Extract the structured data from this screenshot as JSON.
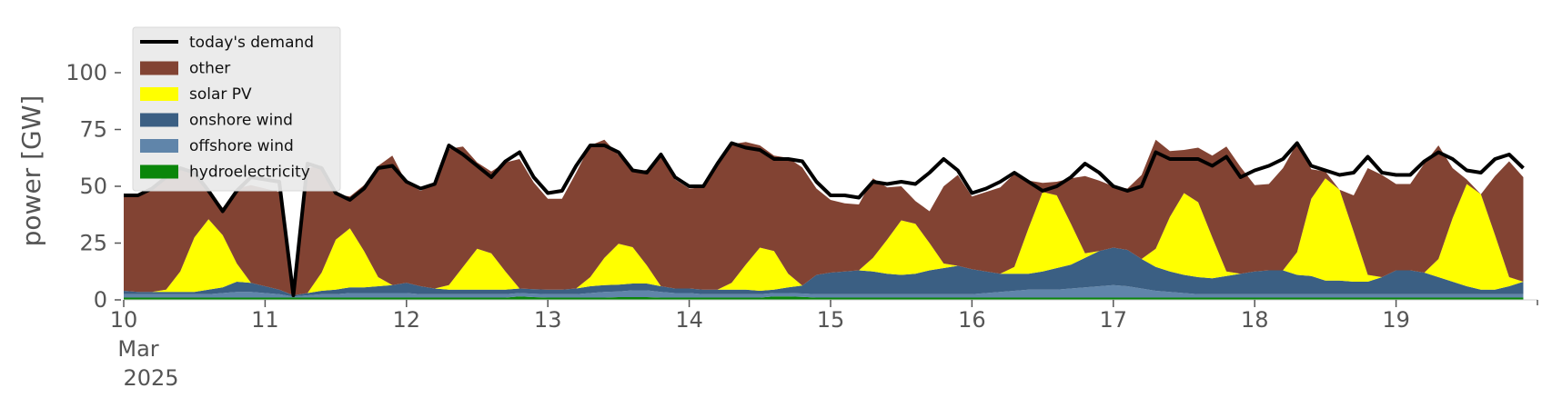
{
  "chart_data": {
    "type": "area",
    "title": "",
    "xlabel": "",
    "ylabel": "power [GW]",
    "ylim": [
      0,
      120
    ],
    "xlim": [
      10,
      20
    ],
    "yticks": [
      0,
      25,
      50,
      75,
      100
    ],
    "xticks": [
      {
        "value": 10,
        "label": "10",
        "sub1": "Mar",
        "sub2": "2025"
      },
      {
        "value": 11,
        "label": "11"
      },
      {
        "value": 12,
        "label": "12"
      },
      {
        "value": 13,
        "label": "13"
      },
      {
        "value": 14,
        "label": "14"
      },
      {
        "value": 15,
        "label": "15"
      },
      {
        "value": 16,
        "label": "16"
      },
      {
        "value": 17,
        "label": "17"
      },
      {
        "value": 18,
        "label": "18"
      },
      {
        "value": 19,
        "label": "19"
      }
    ],
    "grid": false,
    "legend_position": "top-left",
    "x": [
      10.0,
      10.1,
      10.2,
      10.3,
      10.4,
      10.5,
      10.6,
      10.7,
      10.8,
      10.9,
      11.0,
      11.1,
      11.2,
      11.3,
      11.4,
      11.5,
      11.6,
      11.7,
      11.8,
      11.9,
      12.0,
      12.1,
      12.2,
      12.3,
      12.4,
      12.5,
      12.6,
      12.7,
      12.8,
      12.9,
      13.0,
      13.1,
      13.2,
      13.3,
      13.4,
      13.5,
      13.6,
      13.7,
      13.8,
      13.9,
      14.0,
      14.1,
      14.2,
      14.3,
      14.4,
      14.5,
      14.6,
      14.7,
      14.8,
      14.9,
      15.0,
      15.1,
      15.2,
      15.3,
      15.4,
      15.5,
      15.6,
      15.7,
      15.8,
      15.9,
      16.0,
      16.1,
      16.2,
      16.3,
      16.4,
      16.5,
      16.6,
      16.7,
      16.8,
      16.9,
      17.0,
      17.1,
      17.2,
      17.3,
      17.4,
      17.5,
      17.6,
      17.7,
      17.8,
      17.9,
      18.0,
      18.1,
      18.2,
      18.3,
      18.4,
      18.5,
      18.6,
      18.7,
      18.8,
      18.9,
      19.0,
      19.1,
      19.2,
      19.3,
      19.4,
      19.5,
      19.6,
      19.7,
      19.8,
      19.9
    ],
    "series": [
      {
        "name": "hydroelectricity",
        "kind": "area",
        "color": "#0a860a",
        "values": [
          1.0,
          1.0,
          1.0,
          1.0,
          1.0,
          1.0,
          1.0,
          1.0,
          1.0,
          1.0,
          1.0,
          1.0,
          1.0,
          1.0,
          1.0,
          1.0,
          1.0,
          1.0,
          1.0,
          1.0,
          1.0,
          1.0,
          1.0,
          1.0,
          1.0,
          1.0,
          1.0,
          1.0,
          1.5,
          1.2,
          1.0,
          1.0,
          1.0,
          1.0,
          1.0,
          1.2,
          1.2,
          1.2,
          1.0,
          1.0,
          1.0,
          1.0,
          1.0,
          1.0,
          1.0,
          1.0,
          1.5,
          1.5,
          1.3,
          1.0,
          1.0,
          1.0,
          1.0,
          1.0,
          1.0,
          1.0,
          1.0,
          1.0,
          1.0,
          1.0,
          1.0,
          1.0,
          1.0,
          1.0,
          1.0,
          1.0,
          1.0,
          1.0,
          1.0,
          1.0,
          1.0,
          1.0,
          1.0,
          1.0,
          1.0,
          1.0,
          1.0,
          1.0,
          1.0,
          1.0,
          1.0,
          1.0,
          1.0,
          1.0,
          1.0,
          1.0,
          1.0,
          1.0,
          1.0,
          1.0,
          1.0,
          1.0,
          1.0,
          1.0,
          1.0,
          1.0,
          1.0,
          1.0,
          1.0,
          1.0
        ]
      },
      {
        "name": "offshore wind",
        "kind": "area",
        "color": "#6085aa",
        "values": [
          1.5,
          1.5,
          1.5,
          1.5,
          1.5,
          1.5,
          1.5,
          2.0,
          2.5,
          2.5,
          2.0,
          1.5,
          0.5,
          1.0,
          1.5,
          1.5,
          2.0,
          2.0,
          2.0,
          2.0,
          2.0,
          1.5,
          1.5,
          1.5,
          1.5,
          1.5,
          1.5,
          1.5,
          1.5,
          1.5,
          1.5,
          1.5,
          1.5,
          2.0,
          2.5,
          2.5,
          3.0,
          3.0,
          2.5,
          2.0,
          2.0,
          1.5,
          1.5,
          1.5,
          1.5,
          1.5,
          1.5,
          1.5,
          1.5,
          1.5,
          1.5,
          1.5,
          1.5,
          1.5,
          1.5,
          1.5,
          1.5,
          1.5,
          1.5,
          1.5,
          1.5,
          2.0,
          2.5,
          3.0,
          3.5,
          3.5,
          3.5,
          4.0,
          4.5,
          5.0,
          5.5,
          5.0,
          4.0,
          3.0,
          2.5,
          2.0,
          1.5,
          1.5,
          1.5,
          1.5,
          1.5,
          1.5,
          1.5,
          1.5,
          1.5,
          1.5,
          1.5,
          1.5,
          1.5,
          1.5,
          1.5,
          1.5,
          1.5,
          1.5,
          1.5,
          1.5,
          1.5,
          1.5,
          1.5,
          1.5
        ]
      },
      {
        "name": "onshore wind",
        "kind": "area",
        "color": "#3b5f83",
        "values": [
          1.5,
          1.0,
          1.0,
          1.0,
          1.0,
          1.0,
          2.0,
          2.5,
          4.5,
          4.0,
          3.0,
          2.0,
          0.5,
          1.0,
          1.5,
          2.0,
          2.5,
          2.5,
          3.0,
          3.5,
          4.5,
          3.5,
          2.5,
          2.0,
          2.0,
          2.0,
          2.0,
          2.0,
          2.0,
          2.0,
          2.0,
          2.0,
          2.5,
          3.0,
          3.0,
          3.0,
          3.0,
          3.0,
          2.5,
          2.0,
          2.0,
          2.0,
          2.0,
          2.0,
          2.0,
          1.5,
          1.5,
          2.5,
          3.5,
          8.5,
          9.5,
          10.0,
          10.5,
          10.0,
          9.0,
          8.5,
          9.0,
          10.5,
          11.5,
          12.5,
          11.0,
          9.5,
          8.0,
          7.5,
          7.0,
          8.0,
          9.5,
          10.5,
          13.0,
          15.5,
          16.5,
          16.0,
          13.0,
          10.5,
          9.0,
          8.0,
          7.5,
          7.0,
          8.0,
          9.0,
          10.0,
          10.5,
          10.5,
          8.5,
          8.0,
          6.0,
          6.0,
          5.5,
          5.5,
          7.5,
          10.5,
          10.5,
          9.5,
          7.5,
          5.5,
          3.5,
          2.0,
          2.0,
          3.5,
          5.5
        ]
      },
      {
        "name": "solar PV",
        "kind": "area",
        "color": "#ffff00",
        "values": [
          0,
          0,
          0,
          1,
          9,
          24,
          31,
          23,
          8,
          0,
          0,
          0,
          0,
          0,
          8,
          22,
          26,
          16,
          4,
          0,
          0,
          0,
          0,
          2,
          10,
          18,
          16,
          8,
          0,
          0,
          0,
          0,
          0,
          4,
          12,
          18,
          16,
          8,
          0,
          0,
          0,
          0,
          0,
          3,
          11,
          19,
          17,
          6,
          0,
          0,
          0,
          0,
          0,
          6,
          15,
          24,
          22,
          12,
          2,
          0,
          0,
          0,
          0,
          3,
          20,
          35,
          32,
          18,
          2,
          0,
          0,
          0,
          0,
          8,
          24,
          36,
          33,
          18,
          2,
          0,
          0,
          0,
          0,
          10,
          34,
          45,
          40,
          22,
          3,
          0,
          0,
          0,
          0,
          8,
          28,
          45,
          42,
          24,
          4,
          0
        ]
      },
      {
        "name": "other",
        "kind": "area",
        "color": "#824333",
        "values": [
          42,
          43,
          46,
          50,
          46,
          28,
          13,
          12,
          33,
          43,
          43,
          43,
          0,
          55,
          47,
          20,
          14,
          29,
          49,
          57,
          44,
          42,
          46,
          60,
          53,
          38,
          36,
          48,
          57,
          47,
          40,
          40,
          51,
          58,
          52,
          39,
          33,
          42,
          57,
          48,
          44,
          45,
          56,
          61,
          54,
          45,
          42,
          51,
          52,
          38,
          32,
          30,
          29,
          35,
          23,
          15,
          10,
          14,
          34,
          40,
          32,
          35,
          38,
          41,
          21,
          4,
          6,
          20,
          34,
          31,
          27,
          27,
          37,
          48,
          29,
          19,
          24,
          36,
          55,
          47,
          38,
          38,
          45,
          48,
          13,
          3,
          0,
          16,
          47,
          45,
          38,
          38,
          48,
          50,
          22,
          2,
          0,
          26,
          51,
          46
        ]
      },
      {
        "name": "today's demand",
        "kind": "line",
        "color": "#000000",
        "values": [
          46,
          46,
          49,
          54,
          58,
          56,
          48,
          39,
          48,
          54,
          53,
          52,
          2,
          60,
          58,
          47,
          44,
          49,
          58,
          59,
          52,
          49,
          51,
          68,
          64,
          59,
          54,
          61,
          65,
          54,
          47,
          48,
          59,
          68,
          68,
          65,
          57,
          56,
          64,
          54,
          50,
          50,
          60,
          69,
          67,
          66,
          62,
          62,
          61,
          52,
          46,
          46,
          45,
          52,
          51,
          52,
          51,
          56,
          62,
          57,
          47,
          49,
          52,
          56,
          52,
          48,
          50,
          54,
          60,
          56,
          50,
          48,
          50,
          65,
          62,
          62,
          62,
          59,
          63,
          54,
          57,
          59,
          62,
          69,
          59,
          57,
          55,
          56,
          63,
          56,
          55,
          55,
          61,
          65,
          62,
          57,
          56,
          62,
          64,
          58
        ]
      }
    ],
    "legend": [
      {
        "label": "today's demand",
        "swatch": "line",
        "color": "#000000"
      },
      {
        "label": "other",
        "swatch": "patch",
        "color": "#824333"
      },
      {
        "label": "solar PV",
        "swatch": "patch",
        "color": "#ffff00"
      },
      {
        "label": "onshore wind",
        "swatch": "patch",
        "color": "#3b5f83"
      },
      {
        "label": "offshore wind",
        "swatch": "patch",
        "color": "#6085aa"
      },
      {
        "label": "hydroelectricity",
        "swatch": "patch",
        "color": "#0a860a"
      }
    ]
  }
}
